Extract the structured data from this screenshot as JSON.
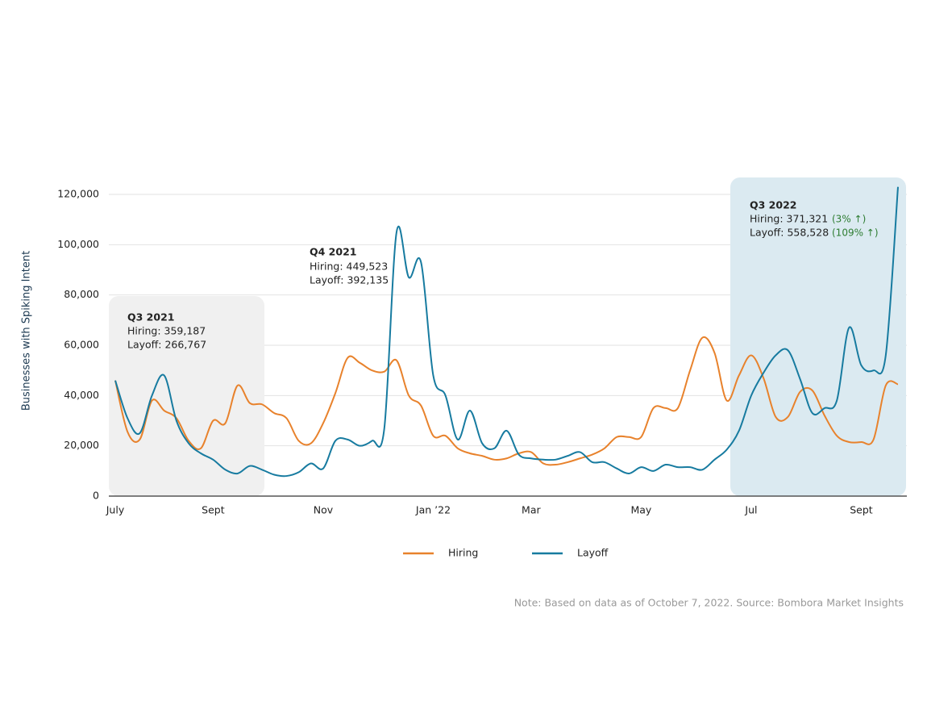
{
  "chart_data": {
    "type": "line",
    "y_label": "Businesses with Spiking Intent",
    "categories": [
      "July",
      null,
      null,
      null,
      null,
      null,
      null,
      null,
      "Sept",
      null,
      null,
      null,
      null,
      null,
      null,
      null,
      null,
      "Nov",
      null,
      null,
      null,
      null,
      null,
      null,
      null,
      null,
      "Jan ’22",
      null,
      null,
      null,
      null,
      null,
      null,
      null,
      "Mar",
      null,
      null,
      null,
      null,
      null,
      null,
      null,
      null,
      "May",
      null,
      null,
      null,
      null,
      null,
      null,
      null,
      null,
      "Jul",
      null,
      null,
      null,
      null,
      null,
      null,
      null,
      null,
      "Sept",
      null,
      null,
      null
    ],
    "series": [
      {
        "name": "Hiring",
        "color": "#e8822c",
        "values": [
          46000,
          25600,
          22500,
          38000,
          34000,
          31000,
          22000,
          19000,
          30000,
          29000,
          44000,
          37000,
          36500,
          33000,
          31000,
          22000,
          21000,
          29000,
          41000,
          55000,
          53000,
          50000,
          49500,
          54000,
          40000,
          36000,
          24000,
          24000,
          19000,
          17000,
          16000,
          14500,
          15000,
          17000,
          17500,
          13000,
          12500,
          13500,
          15000,
          16500,
          19000,
          23500,
          23500,
          23500,
          35000,
          35000,
          35000,
          50000,
          63000,
          57000,
          38000,
          48000,
          56000,
          47000,
          31500,
          31500,
          41500,
          42000,
          32000,
          24000,
          21500,
          21500,
          22500,
          44000,
          44500
        ]
      },
      {
        "name": "Layoff",
        "color": "#177ba0",
        "values": [
          46000,
          31000,
          25000,
          40000,
          48000,
          30000,
          21000,
          17000,
          14500,
          10500,
          9000,
          12000,
          10500,
          8500,
          8000,
          9500,
          13000,
          11000,
          22000,
          22500,
          20000,
          22000,
          27000,
          105000,
          87000,
          93000,
          48000,
          40000,
          22500,
          34000,
          21000,
          19000,
          26000,
          16500,
          15000,
          14500,
          14500,
          16000,
          17500,
          13500,
          13500,
          11000,
          9000,
          11500,
          10000,
          12500,
          11500,
          11500,
          10500,
          14500,
          18500,
          26000,
          40000,
          49000,
          56000,
          58000,
          46500,
          33000,
          35000,
          38000,
          67000,
          52000,
          50000,
          56000,
          123000
        ]
      }
    ],
    "ylim": [
      0,
      120000
    ],
    "yticks": [
      0,
      {
        "value": 20000,
        "label": "20,000"
      },
      {
        "value": 40000,
        "label": "40,000"
      },
      {
        "value": 60000,
        "label": "60,000"
      },
      {
        "value": 80000,
        "label": "80,000"
      },
      {
        "value": 100000,
        "label": "100,000"
      },
      {
        "value": 120000,
        "label": "120,000"
      }
    ],
    "grid": true,
    "legend": "bottom",
    "annotations": [
      {
        "title": "Q3 2021",
        "hiring": "Hiring: 359,187",
        "layoff": "Layoff: 266,767"
      },
      {
        "title": "Q4 2021",
        "hiring": "Hiring: 449,523",
        "layoff": "Layoff: 392,135"
      },
      {
        "title": "Q3 2022",
        "hiring": "Hiring: 371,321",
        "hiring_change": "(3% ↑)",
        "layoff": "Layoff: 558,528",
        "layoff_change": "(109% ↑)"
      }
    ],
    "note": "Note: Based on data as of October 7, 2022. Source: Bombora Market Insights"
  }
}
